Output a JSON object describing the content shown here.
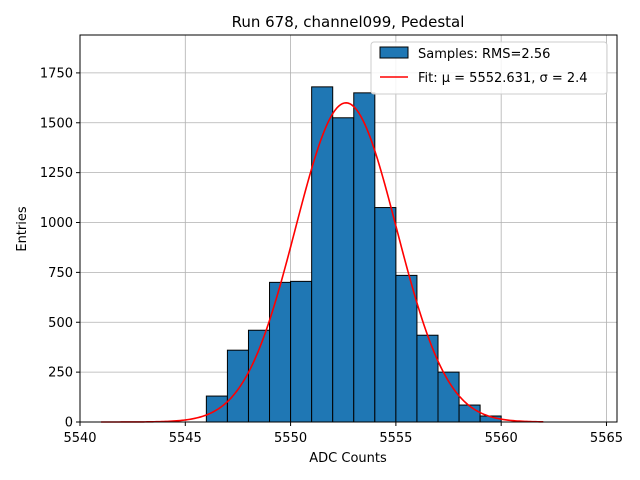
{
  "chart_data": {
    "type": "bar",
    "title": "Run 678, channel099, Pedestal",
    "xlabel": "ADC Counts",
    "ylabel": "Entries",
    "xlim": [
      5540,
      5565.5
    ],
    "ylim": [
      0,
      1940
    ],
    "xticks": [
      5540,
      5545,
      5550,
      5555,
      5560,
      5565
    ],
    "yticks": [
      0,
      250,
      500,
      750,
      1000,
      1250,
      1500,
      1750
    ],
    "grid": true,
    "legend_position": "top-right",
    "legend": [
      {
        "label": "Samples: RMS=2.56",
        "kind": "patch"
      },
      {
        "label": "Fit: μ = 5552.631, σ = 2.4",
        "kind": "line"
      }
    ],
    "colors": {
      "bars": "#1f77b4",
      "bar_edge": "#000000",
      "fit": "#ff0000",
      "grid": "#b0b0b0"
    },
    "histogram": {
      "bin_edges": [
        5546,
        5547,
        5548,
        5549,
        5550,
        5551,
        5552,
        5553,
        5554,
        5555,
        5556,
        5557,
        5558,
        5559,
        5560
      ],
      "counts": [
        130,
        360,
        460,
        700,
        705,
        1680,
        1525,
        1650,
        1075,
        735,
        435,
        250,
        85,
        30
      ]
    },
    "fit": {
      "mu": 5552.631,
      "sigma": 2.4,
      "amplitude": 1600,
      "x_range": [
        5541,
        5562
      ]
    }
  }
}
